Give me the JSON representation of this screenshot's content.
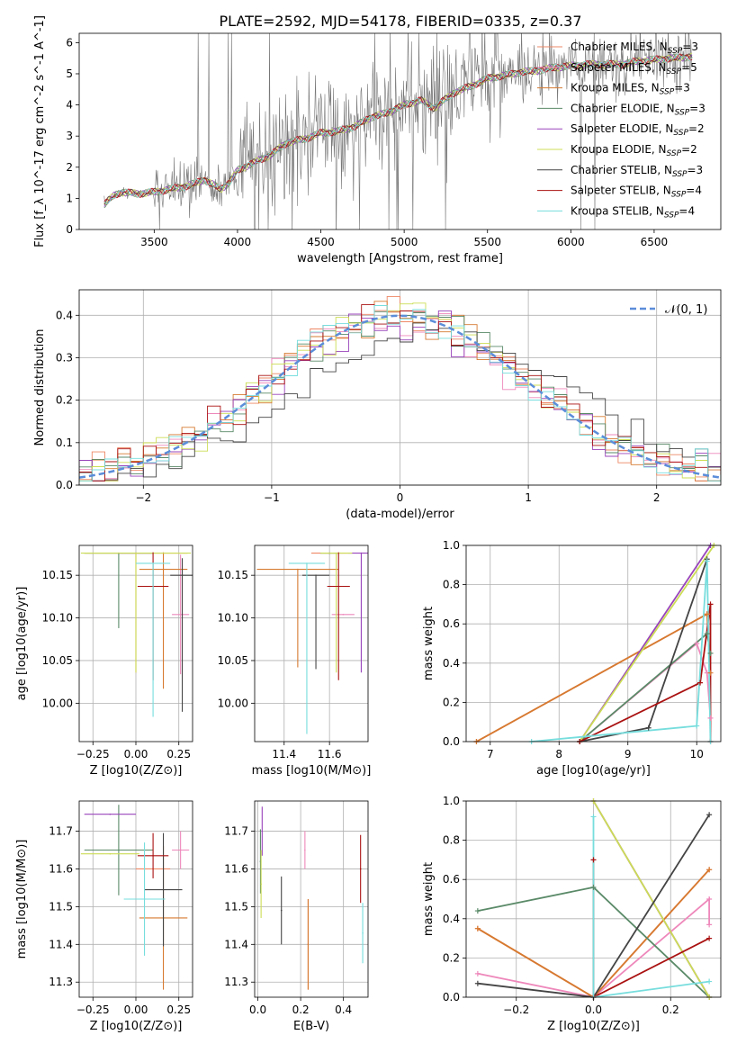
{
  "figure_title": "PLATE=2592, MJD=54178, FIBERID=0335, z=0.37",
  "colors": {
    "chabrier_miles": "#ee8866",
    "salpeter_miles": "#ee88bb",
    "kroupa_miles": "#d67a30",
    "chabrier_elodie": "#5a8a68",
    "salpeter_elodie": "#9944bb",
    "kroupa_elodie": "#ccdd55",
    "chabrier_stelib": "#444444",
    "salpeter_stelib": "#aa1111",
    "kroupa_stelib": "#77dddd",
    "data": "#777777",
    "gaussian": "#5b8dd9",
    "grid": "#b0b0b0"
  },
  "chart_data": [
    {
      "id": "spectrum",
      "type": "line",
      "title": "PLATE=2592, MJD=54178, FIBERID=0335, z=0.37",
      "xlabel": "wavelength [Angstrom, rest frame]",
      "ylabel": "Flux [f_λ 10^-17 erg cm^-2 s^-1 A^-1]",
      "xlim": [
        3050,
        6900
      ],
      "ylim": [
        0,
        6.3
      ],
      "xticks": [
        "3500",
        "4000",
        "4500",
        "5000",
        "5500",
        "6000",
        "6500"
      ],
      "yticks": [
        "0",
        "1",
        "2",
        "3",
        "4",
        "5",
        "6"
      ],
      "grid": false,
      "legend_position": "top-right",
      "legend": [
        "Chabrier MILES, N_SSP=3",
        "Salpeter MILES, N_SSP=5",
        "Kroupa MILES, N_SSP=3",
        "Chabrier ELODIE, N_SSP=3",
        "Salpeter ELODIE, N_SSP=2",
        "Kroupa ELODIE, N_SSP=2",
        "Chabrier STELIB, N_SSP=3",
        "Salpeter STELIB, N_SSP=4",
        "Kroupa STELIB, N_SSP=4"
      ],
      "model_continuum": {
        "x": [
          3200,
          3260,
          3300,
          3400,
          3500,
          3600,
          3700,
          3800,
          3900,
          3950,
          4000,
          4100,
          4200,
          4300,
          4400,
          4500,
          4600,
          4700,
          4800,
          4900,
          5000,
          5100,
          5180,
          5300,
          5400,
          5500,
          5600,
          5700,
          5800,
          5900,
          6000,
          6100,
          6200,
          6300,
          6400,
          6500,
          6600,
          6730
        ],
        "y": [
          0.8,
          1.1,
          1.2,
          1.15,
          1.2,
          1.3,
          1.4,
          1.6,
          1.3,
          1.5,
          1.9,
          2.15,
          2.4,
          2.8,
          2.9,
          3.1,
          3.15,
          3.3,
          3.6,
          3.75,
          4.0,
          4.15,
          3.9,
          4.4,
          4.6,
          4.85,
          4.95,
          5.05,
          5.1,
          5.2,
          5.25,
          5.3,
          5.3,
          5.3,
          5.4,
          5.45,
          5.5,
          5.55
        ]
      }
    },
    {
      "id": "residuals",
      "type": "bar",
      "title": "",
      "xlabel": "(data-model)/error",
      "ylabel": "Normed distribution",
      "xlim": [
        -2.5,
        2.5
      ],
      "ylim": [
        0,
        0.46
      ],
      "xticks": [
        "−2",
        "−1",
        "0",
        "1",
        "2"
      ],
      "yticks": [
        "0.0",
        "0.1",
        "0.2",
        "0.3",
        "0.4"
      ],
      "grid": true,
      "legend_position": "top-right",
      "legend": [
        "𝒩(0, 1)"
      ],
      "bin_width": 0.1,
      "reference_curve": "standard normal density, mean 0, sigma 1"
    },
    {
      "id": "age_vs_Z",
      "type": "scatter",
      "xlabel": "Z [log10(Z/Z⊙)]",
      "ylabel": "age  [log10(age/yr)]",
      "xlim": [
        -0.33,
        0.33
      ],
      "ylim": [
        9.955,
        10.185
      ],
      "xticks": [
        "−0.25",
        "0.00",
        "0.25"
      ],
      "yticks": [
        "10.00",
        "10.05",
        "10.10",
        "10.15"
      ],
      "grid": true,
      "points": [
        {
          "model": "Chabrier MILES",
          "x": 0.0,
          "y": 10.176,
          "xerr": 0.3,
          "yerr_low": 0.14,
          "yerr_high": 0.0
        },
        {
          "model": "Salpeter MILES",
          "x": 0.26,
          "y": 10.104,
          "xerr": 0.05,
          "yerr_low": 0.07,
          "yerr_high": 0.07
        },
        {
          "model": "Kroupa MILES",
          "x": 0.16,
          "y": 10.157,
          "xerr": 0.14,
          "yerr_low": 0.14,
          "yerr_high": 0.02
        },
        {
          "model": "Chabrier ELODIE",
          "x": -0.1,
          "y": 10.176,
          "xerr": 0.2,
          "yerr_low": 0.088,
          "yerr_high": 0.0
        },
        {
          "model": "Salpeter ELODIE",
          "x": 0.0,
          "y": 10.176,
          "xerr": 0.1,
          "yerr_low": 0.0,
          "yerr_high": 0.0
        },
        {
          "model": "Kroupa ELODIE",
          "x": 0.0,
          "y": 10.176,
          "xerr": 0.32,
          "yerr_low": 0.14,
          "yerr_high": 0.0
        },
        {
          "model": "Chabrier STELIB",
          "x": 0.27,
          "y": 10.15,
          "xerr": 0.07,
          "yerr_low": 0.16,
          "yerr_high": 0.02
        },
        {
          "model": "Salpeter STELIB",
          "x": 0.1,
          "y": 10.137,
          "xerr": 0.09,
          "yerr_low": 0.11,
          "yerr_high": 0.04
        },
        {
          "model": "Kroupa STELIB",
          "x": 0.1,
          "y": 10.164,
          "xerr": 0.1,
          "yerr_low": 0.18,
          "yerr_high": 0.0
        }
      ]
    },
    {
      "id": "age_vs_mass",
      "type": "scatter",
      "xlabel": "mass [log10(M/M⊙)]",
      "ylabel": "",
      "xlim": [
        11.27,
        11.77
      ],
      "ylim": [
        9.955,
        10.185
      ],
      "xticks": [
        "11.4",
        "11.6"
      ],
      "yticks": [
        "10.00",
        "10.05",
        "10.10",
        "10.15"
      ],
      "grid": true,
      "points": [
        {
          "model": "Chabrier MILES",
          "x": 11.6,
          "y": 10.176,
          "xerr": 0.08,
          "yerr_low": 0.0,
          "yerr_high": 0.0
        },
        {
          "model": "Salpeter MILES",
          "x": 11.66,
          "y": 10.104,
          "xerr": 0.05,
          "yerr_low": 0.0,
          "yerr_high": 0.0
        },
        {
          "model": "Kroupa MILES",
          "x": 11.46,
          "y": 10.157,
          "xerr": 0.18,
          "yerr_low": 0.115,
          "yerr_high": 0.0
        },
        {
          "model": "Chabrier ELODIE",
          "x": 11.6,
          "y": 10.176,
          "xerr": 0.04,
          "yerr_low": 0.0,
          "yerr_high": 0.0
        },
        {
          "model": "Salpeter ELODIE",
          "x": 11.74,
          "y": 10.176,
          "xerr": 0.06,
          "yerr_low": 0.14,
          "yerr_high": 0.0
        },
        {
          "model": "Kroupa ELODIE",
          "x": 11.63,
          "y": 10.176,
          "xerr": 0.07,
          "yerr_low": 0.14,
          "yerr_high": 0.0
        },
        {
          "model": "Chabrier STELIB",
          "x": 11.54,
          "y": 10.15,
          "xerr": 0.06,
          "yerr_low": 0.11,
          "yerr_high": 0.0
        },
        {
          "model": "Salpeter STELIB",
          "x": 11.64,
          "y": 10.137,
          "xerr": 0.05,
          "yerr_low": 0.11,
          "yerr_high": 0.04
        },
        {
          "model": "Kroupa STELIB",
          "x": 11.5,
          "y": 10.164,
          "xerr": 0.08,
          "yerr_low": 0.2,
          "yerr_high": 0.0
        }
      ]
    },
    {
      "id": "weight_vs_age",
      "type": "line",
      "xlabel": "age  [log10(age/yr)]",
      "ylabel": "mass weight",
      "xlim": [
        6.65,
        10.35
      ],
      "ylim": [
        0,
        1
      ],
      "xticks": [
        "7",
        "8",
        "9",
        "10"
      ],
      "yticks": [
        "0.0",
        "0.2",
        "0.4",
        "0.6",
        "0.8",
        "1.0"
      ],
      "grid": true,
      "series": [
        {
          "model": "Chabrier MILES",
          "x": [
            6.8,
            10.15
          ],
          "y": [
            0.0,
            0.65
          ]
        },
        {
          "model": "Salpeter MILES",
          "x": [
            8.3,
            10.0,
            10.15,
            10.2
          ],
          "y": [
            0.0,
            0.5,
            0.35,
            0.12
          ]
        },
        {
          "model": "Kroupa MILES",
          "x": [
            6.8,
            10.15,
            10.2
          ],
          "y": [
            0.0,
            0.65,
            0.35
          ]
        },
        {
          "model": "Chabrier ELODIE",
          "x": [
            8.3,
            10.15,
            10.2
          ],
          "y": [
            0.0,
            0.55,
            0.45
          ]
        },
        {
          "model": "Salpeter ELODIE",
          "x": [
            8.3,
            10.2
          ],
          "y": [
            0.0,
            1.0
          ]
        },
        {
          "model": "Kroupa ELODIE",
          "x": [
            8.3,
            10.25
          ],
          "y": [
            0.0,
            1.0
          ]
        },
        {
          "model": "Chabrier STELIB",
          "x": [
            8.3,
            9.3,
            10.15
          ],
          "y": [
            0.0,
            0.07,
            0.93
          ]
        },
        {
          "model": "Salpeter STELIB",
          "x": [
            8.3,
            10.05,
            10.2,
            10.2
          ],
          "y": [
            0.0,
            0.3,
            0.7,
            0.0
          ]
        },
        {
          "model": "Kroupa STELIB",
          "x": [
            7.6,
            10.0,
            10.15,
            10.2
          ],
          "y": [
            0.0,
            0.08,
            0.92,
            0.0
          ]
        }
      ]
    },
    {
      "id": "mass_vs_Z",
      "type": "scatter",
      "xlabel": "Z [log10(Z/Z⊙)]",
      "ylabel": "mass [log10(M/M⊙)]",
      "xlim": [
        -0.33,
        0.33
      ],
      "ylim": [
        11.26,
        11.78
      ],
      "xticks": [
        "−0.25",
        "0.00",
        "0.25"
      ],
      "yticks": [
        "11.3",
        "11.4",
        "11.5",
        "11.6",
        "11.7"
      ],
      "grid": true,
      "points": [
        {
          "model": "Chabrier MILES",
          "x": 0.1,
          "y": 11.6,
          "xerr": 0.1,
          "yerr": 0.0
        },
        {
          "model": "Salpeter MILES",
          "x": 0.26,
          "y": 11.65,
          "xerr": 0.05,
          "yerr": 0.05
        },
        {
          "model": "Kroupa MILES",
          "x": 0.16,
          "y": 11.47,
          "xerr": 0.14,
          "yerr": 0.19
        },
        {
          "model": "Chabrier ELODIE",
          "x": -0.1,
          "y": 11.65,
          "xerr": 0.2,
          "yerr": 0.12
        },
        {
          "model": "Salpeter ELODIE",
          "x": -0.15,
          "y": 11.745,
          "xerr": 0.15,
          "yerr": 0.0
        },
        {
          "model": "Kroupa ELODIE",
          "x": -0.15,
          "y": 11.64,
          "xerr": 0.17,
          "yerr": 0.0
        },
        {
          "model": "Chabrier STELIB",
          "x": 0.16,
          "y": 11.545,
          "xerr": 0.11,
          "yerr": 0.15
        },
        {
          "model": "Salpeter STELIB",
          "x": 0.1,
          "y": 11.635,
          "xerr": 0.09,
          "yerr": 0.06
        },
        {
          "model": "Kroupa STELIB",
          "x": 0.05,
          "y": 11.52,
          "xerr": 0.12,
          "yerr": 0.15
        }
      ]
    },
    {
      "id": "mass_vs_ebv",
      "type": "scatter",
      "xlabel": "E(B-V)",
      "ylabel": "",
      "xlim": [
        -0.015,
        0.515
      ],
      "ylim": [
        11.26,
        11.78
      ],
      "xticks": [
        "0.0",
        "0.2",
        "0.4"
      ],
      "yticks": [
        "11.3",
        "11.4",
        "11.5",
        "11.6",
        "11.7"
      ],
      "grid": true,
      "points": [
        {
          "model": "Chabrier MILES",
          "x": 0.235,
          "y": 11.4,
          "yerr": 0.12
        },
        {
          "model": "Salpeter MILES",
          "x": 0.22,
          "y": 11.65,
          "yerr": 0.05
        },
        {
          "model": "Kroupa MILES",
          "x": 0.235,
          "y": 11.4,
          "yerr": 0.12
        },
        {
          "model": "Chabrier ELODIE",
          "x": 0.012,
          "y": 11.62,
          "yerr": 0.085
        },
        {
          "model": "Salpeter ELODIE",
          "x": 0.02,
          "y": 11.7,
          "yerr": 0.065
        },
        {
          "model": "Kroupa ELODIE",
          "x": 0.015,
          "y": 11.56,
          "yerr": 0.09
        },
        {
          "model": "Chabrier STELIB",
          "x": 0.11,
          "y": 11.49,
          "yerr": 0.09
        },
        {
          "model": "Salpeter STELIB",
          "x": 0.48,
          "y": 11.6,
          "yerr": 0.09
        },
        {
          "model": "Kroupa STELIB",
          "x": 0.49,
          "y": 11.43,
          "yerr": 0.08
        }
      ]
    },
    {
      "id": "weight_vs_Z",
      "type": "line",
      "xlabel": "Z [log10(Z/Z⊙)]",
      "ylabel": "mass weight",
      "xlim": [
        -0.33,
        0.33
      ],
      "ylim": [
        0,
        1
      ],
      "xticks": [
        "−0.2",
        "0.0",
        "0.2"
      ],
      "yticks": [
        "0.0",
        "0.2",
        "0.4",
        "0.6",
        "0.8",
        "1.0"
      ],
      "grid": true,
      "series": [
        {
          "model": "Chabrier MILES",
          "x": [
            -0.3,
            0.0,
            0.3
          ],
          "y": [
            0.35,
            0.0,
            0.65
          ]
        },
        {
          "model": "Salpeter MILES",
          "x": [
            -0.3,
            0.0,
            0.3,
            0.3
          ],
          "y": [
            0.12,
            0.0,
            0.5,
            0.37
          ]
        },
        {
          "model": "Kroupa MILES",
          "x": [
            -0.3,
            0.0,
            0.3
          ],
          "y": [
            0.35,
            0.0,
            0.65
          ]
        },
        {
          "model": "Chabrier ELODIE",
          "x": [
            -0.3,
            0.0,
            0.3
          ],
          "y": [
            0.44,
            0.56,
            0.0
          ]
        },
        {
          "model": "Salpeter ELODIE",
          "x": [
            0.0,
            0.3
          ],
          "y": [
            1.0,
            0.0
          ]
        },
        {
          "model": "Kroupa ELODIE",
          "x": [
            0.0,
            0.3
          ],
          "y": [
            1.0,
            0.0
          ]
        },
        {
          "model": "Chabrier STELIB",
          "x": [
            -0.3,
            0.0,
            0.3
          ],
          "y": [
            0.07,
            0.0,
            0.93
          ]
        },
        {
          "model": "Salpeter STELIB",
          "x": [
            0.0,
            0.0,
            0.3
          ],
          "y": [
            0.7,
            0.0,
            0.3
          ]
        },
        {
          "model": "Kroupa STELIB",
          "x": [
            0.0,
            0.0,
            0.3
          ],
          "y": [
            0.92,
            0.0,
            0.08
          ]
        }
      ]
    }
  ]
}
